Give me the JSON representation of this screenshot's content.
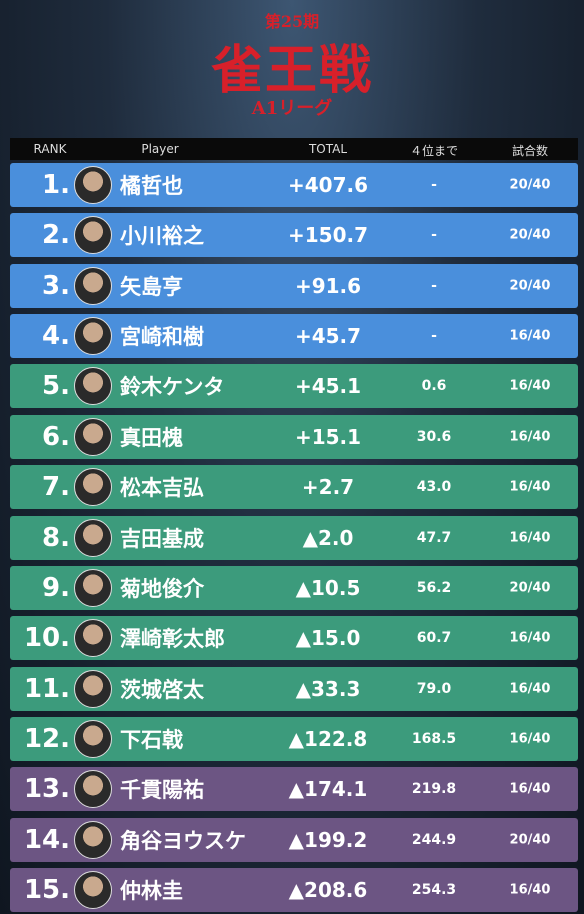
{
  "header": {
    "edition": "第25期",
    "title": "雀王戦",
    "league": "A1リーグ"
  },
  "table": {
    "columns": [
      "RANK",
      "Player",
      "TOTAL",
      "４位まで",
      "試合数"
    ],
    "rows": [
      [
        "1.",
        "橘哲也",
        "+407.6",
        "-",
        "20/40"
      ],
      [
        "2.",
        "小川裕之",
        "+150.7",
        "-",
        "20/40"
      ],
      [
        "3.",
        "矢島亨",
        "+91.6",
        "-",
        "20/40"
      ],
      [
        "4.",
        "宮崎和樹",
        "+45.7",
        "-",
        "16/40"
      ],
      [
        "5.",
        "鈴木ケンタ",
        "+45.1",
        "0.6",
        "16/40"
      ],
      [
        "6.",
        "真田槐",
        "+15.1",
        "30.6",
        "16/40"
      ],
      [
        "7.",
        "松本吉弘",
        "+2.7",
        "43.0",
        "16/40"
      ],
      [
        "8.",
        "吉田基成",
        "▲2.0",
        "47.7",
        "16/40"
      ],
      [
        "9.",
        "菊地俊介",
        "▲10.5",
        "56.2",
        "20/40"
      ],
      [
        "10.",
        "澤崎彰太郎",
        "▲15.0",
        "60.7",
        "16/40"
      ],
      [
        "11.",
        "茨城啓太",
        "▲33.3",
        "79.0",
        "16/40"
      ],
      [
        "12.",
        "下石戟",
        "▲122.8",
        "168.5",
        "16/40"
      ],
      [
        "13.",
        "千貫陽祐",
        "▲174.1",
        "219.8",
        "16/40"
      ],
      [
        "14.",
        "角谷ヨウスケ",
        "▲199.2",
        "244.9",
        "20/40"
      ],
      [
        "15.",
        "仲林圭",
        "▲208.6",
        "254.3",
        "16/40"
      ]
    ]
  }
}
